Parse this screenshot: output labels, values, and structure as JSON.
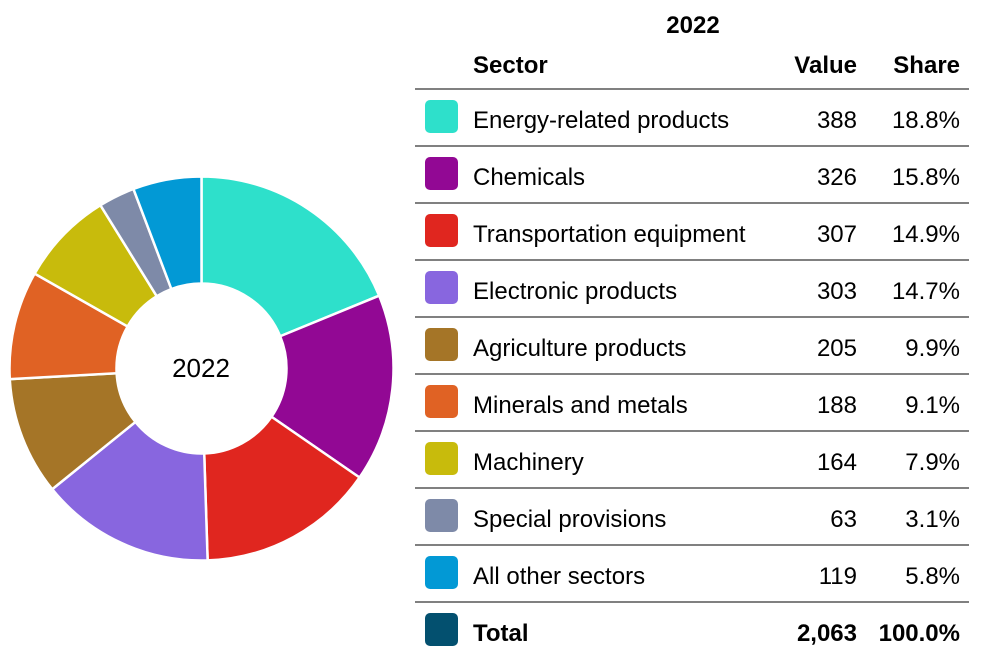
{
  "chart_data": {
    "type": "pie",
    "variant": "donut",
    "title": "2022",
    "center_label": "2022",
    "categories": [
      "Energy-related products",
      "Chemicals",
      "Transportation equipment",
      "Electronic products",
      "Agriculture products",
      "Minerals and metals",
      "Machinery",
      "Special provisions",
      "All other sectors"
    ],
    "values": [
      388,
      326,
      307,
      303,
      205,
      188,
      164,
      63,
      119
    ],
    "shares": [
      "18.8%",
      "15.8%",
      "14.9%",
      "14.7%",
      "9.9%",
      "9.1%",
      "7.9%",
      "3.1%",
      "5.8%"
    ],
    "colors": [
      "#2ee0cb",
      "#920894",
      "#e0261f",
      "#8866df",
      "#a57527",
      "#e06224",
      "#c8bb0c",
      "#7e8aa8",
      "#0299d5"
    ],
    "start": "top",
    "direction": "clockwise"
  },
  "table": {
    "year": "2022",
    "headers": {
      "sector": "Sector",
      "value": "Value",
      "share": "Share"
    },
    "rows": [
      {
        "sector": "Energy-related products",
        "value": "388",
        "share": "18.8%",
        "color": "#2ee0cb"
      },
      {
        "sector": "Chemicals",
        "value": "326",
        "share": "15.8%",
        "color": "#920894"
      },
      {
        "sector": "Transportation equipment",
        "value": "307",
        "share": "14.9%",
        "color": "#e0261f"
      },
      {
        "sector": "Electronic products",
        "value": "303",
        "share": "14.7%",
        "color": "#8866df"
      },
      {
        "sector": "Agriculture products",
        "value": "205",
        "share": "9.9%",
        "color": "#a57527"
      },
      {
        "sector": "Minerals and metals",
        "value": "188",
        "share": "9.1%",
        "color": "#e06224"
      },
      {
        "sector": "Machinery",
        "value": "164",
        "share": "7.9%",
        "color": "#c8bb0c"
      },
      {
        "sector": "Special provisions",
        "value": "63",
        "share": "3.1%",
        "color": "#7e8aa8"
      },
      {
        "sector": "All other sectors",
        "value": "119",
        "share": "5.8%",
        "color": "#0299d5"
      }
    ],
    "total": {
      "sector": "Total",
      "value": "2,063",
      "share": "100.0%",
      "color": "#03506f"
    }
  }
}
